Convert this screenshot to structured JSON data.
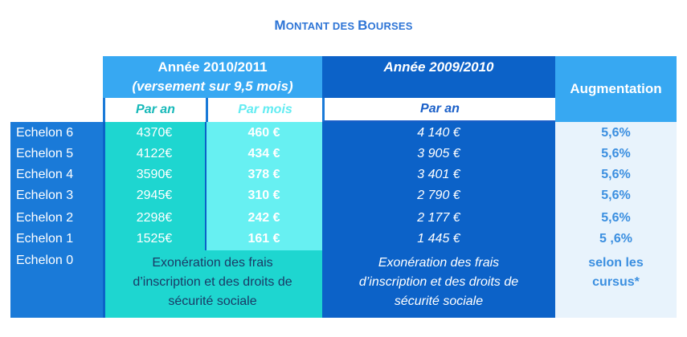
{
  "title": {
    "first_letter_1": "M",
    "rest_1": "ONTANT DES ",
    "first_letter_2": "B",
    "rest_2": "OURSES"
  },
  "header": {
    "year_2010_line1": "Année 2010/2011",
    "year_2010_line2": "(versement sur 9,5 mois)",
    "year_2009": "Année 2009/2010",
    "increase": "Augmentation",
    "sub_par_an": "Par an",
    "sub_par_mois": "Par mois",
    "sub_par_an_2009": "Par an"
  },
  "rows": [
    {
      "label": "Echelon 6",
      "par_an": "4370€",
      "par_mois": "460 €",
      "par_an_2009": "4 140 €",
      "augmentation": "5,6%"
    },
    {
      "label": "Echelon 5",
      "par_an": "4122€",
      "par_mois": "434 €",
      "par_an_2009": "3 905 €",
      "augmentation": "5,6%"
    },
    {
      "label": "Echelon 4",
      "par_an": "3590€",
      "par_mois": "378 €",
      "par_an_2009": "3 401 €",
      "augmentation": "5,6%"
    },
    {
      "label": "Echelon 3",
      "par_an": "2945€",
      "par_mois": "310 €",
      "par_an_2009": "2 790 €",
      "augmentation": "5,6%"
    },
    {
      "label": "Echelon 2",
      "par_an": "2298€",
      "par_mois": "242 €",
      "par_an_2009": "2 177 €",
      "augmentation": "5,6%"
    },
    {
      "label": "Echelon 1",
      "par_an": "1525€",
      "par_mois": "161 €",
      "par_an_2009": "1 445 €",
      "augmentation": "5 ,6%"
    }
  ],
  "echelon0": {
    "label": "Echelon 0",
    "exoneration_2010": [
      "Exonération des frais",
      "d’inscription et des droits de",
      "sécurité sociale"
    ],
    "exoneration_2009": [
      "Exonération des frais",
      "d’inscription et des droits de",
      "sécurité sociale"
    ],
    "augmentation": [
      "selon les",
      "cursus*"
    ]
  }
}
